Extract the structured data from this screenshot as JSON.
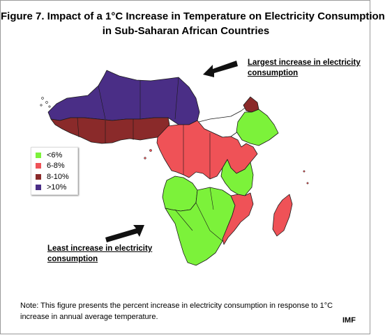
{
  "title": {
    "line1": "Figure 7. Impact of a 1°C Increase in Temperature on Electricity Consumption",
    "line2": "in Sub-Saharan African Countries"
  },
  "annotations": {
    "top_line1": "Largest increase in electricity",
    "top_line2": "consumption",
    "bottom_line1": "Least increase in electricity",
    "bottom_line2": "consumption"
  },
  "legend": {
    "items": [
      {
        "label": "<6%",
        "color": "#7cf23a"
      },
      {
        "label": "6-8%",
        "color": "#ef5257"
      },
      {
        "label": "8-10%",
        "color": "#8a2a2a"
      },
      {
        "label": ">10%",
        "color": "#4a2e86"
      }
    ]
  },
  "colors": {
    "green": "#7cf23a",
    "red": "#ef5257",
    "maroon": "#8a2a2a",
    "purple": "#4a2e86",
    "nodata": "#ffffff"
  },
  "note": {
    "line1": "Note: This figure presents the percent increase in electricity consumption in response to 1°C",
    "line2": "increase in annual average temperature."
  },
  "source": "IMF"
}
